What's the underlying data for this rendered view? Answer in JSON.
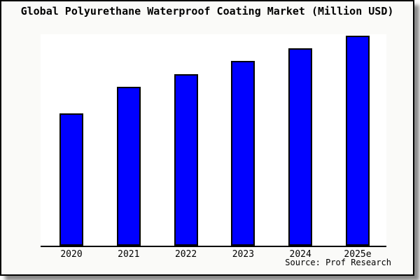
{
  "page": {
    "outer_background": "#ffffff",
    "frame_background": "#fafaf8",
    "frame_border_color": "#000000",
    "shadow_color": "#8a8a8a"
  },
  "chart_data": {
    "type": "bar",
    "title": "Global Polyurethane Waterproof Coating Market (Million USD)",
    "categories": [
      "2020",
      "2021",
      "2022",
      "2023",
      "2024",
      "2025e"
    ],
    "values_pct_of_max": [
      63,
      75.7,
      81.7,
      88,
      94,
      100
    ],
    "unit": "Million USD",
    "xlabel": "",
    "ylabel": "",
    "y_axis_ticks_visible": false,
    "gridlines": false,
    "legend": "none",
    "bar_color": "#0000ff",
    "bar_edge_color": "#000000",
    "plot_background": "#ffffff",
    "source_note": "Source: Prof Research"
  }
}
